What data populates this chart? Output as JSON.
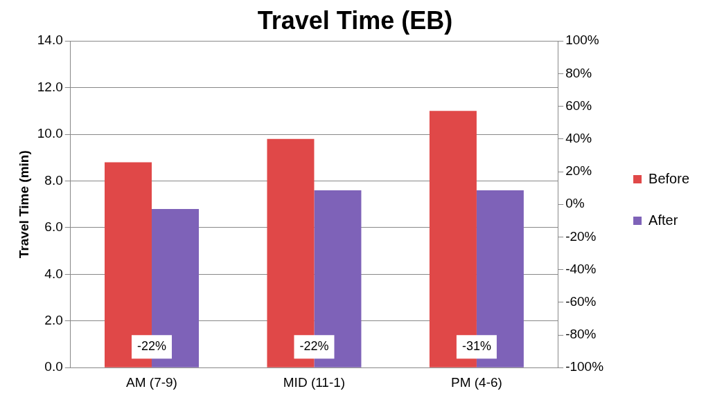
{
  "chart_data": {
    "type": "bar",
    "title": "Travel Time (EB)",
    "ylabel": "Travel Time (min)",
    "categories": [
      "AM (7-9)",
      "MID (11-1)",
      "PM (4-6)"
    ],
    "series": [
      {
        "name": "Before",
        "color": "#e04848",
        "values": [
          8.8,
          9.8,
          11.0
        ]
      },
      {
        "name": "After",
        "color": "#7e62b8",
        "values": [
          6.8,
          7.6,
          7.6
        ]
      }
    ],
    "ylim": [
      0,
      14
    ],
    "yticks": [
      {
        "value": 0,
        "label": "0.0"
      },
      {
        "value": 2,
        "label": "2.0"
      },
      {
        "value": 4,
        "label": "4.0"
      },
      {
        "value": 6,
        "label": "6.0"
      },
      {
        "value": 8,
        "label": "8.0"
      },
      {
        "value": 10,
        "label": "10.0"
      },
      {
        "value": 12,
        "label": "12.0"
      },
      {
        "value": 14,
        "label": "14.0"
      }
    ],
    "y2lim": [
      -100,
      100
    ],
    "y2ticks": [
      {
        "value": -100,
        "label": "-100%"
      },
      {
        "value": -80,
        "label": "-80%"
      },
      {
        "value": -60,
        "label": "-60%"
      },
      {
        "value": -40,
        "label": "-40%"
      },
      {
        "value": -20,
        "label": "-20%"
      },
      {
        "value": 0,
        "label": "0%"
      },
      {
        "value": 20,
        "label": "20%"
      },
      {
        "value": 40,
        "label": "40%"
      },
      {
        "value": 60,
        "label": "60%"
      },
      {
        "value": 80,
        "label": "80%"
      },
      {
        "value": 100,
        "label": "100%"
      }
    ],
    "annotations": [
      "-22%",
      "-22%",
      "-31%"
    ],
    "grid": "y",
    "legend": "right"
  }
}
